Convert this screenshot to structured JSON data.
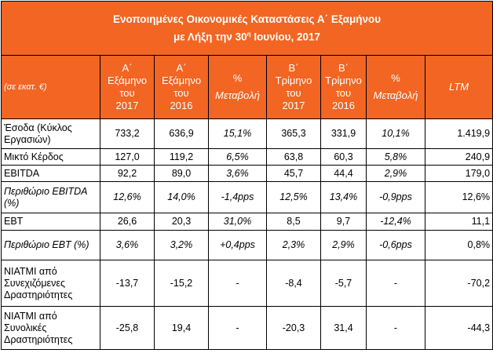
{
  "title": {
    "line1": "Ενοποιημένες Οικονομικές Καταστάσεις Α΄ Εξαμήνου",
    "line2_pre": "με Λήξη την 30",
    "line2_sup": "η",
    "line2_post": " Ιουνίου, 2017"
  },
  "header": {
    "units": "(σε εκατ. €)",
    "columns": [
      {
        "line1": "Α΄",
        "line2": "Εξάμηνο",
        "line3": "του",
        "line4": "2017"
      },
      {
        "line1": "Α΄",
        "line2": "Εξάμηνο",
        "line3": "του",
        "line4": "2016"
      },
      {
        "line1": "%",
        "line2": "Μεταβολή"
      },
      {
        "line1": "Β΄",
        "line2": "Τρίμηνο",
        "line3": "του",
        "line4": "2017"
      },
      {
        "line1": "Β΄",
        "line2": "Τρίμηνο",
        "line3": "του",
        "line4": "2016"
      },
      {
        "line1": "%",
        "line2": "Μεταβολή"
      },
      {
        "line1": "LTM"
      }
    ]
  },
  "rows": [
    {
      "label": "Έσοδα (Κύκλος Εργασιών)",
      "italic": false,
      "values": [
        "733,2",
        "636,9",
        "15,1%",
        "365,3",
        "331,9",
        "10,1%",
        "1.419,9"
      ]
    },
    {
      "label": "Μικτό Κέρδος",
      "italic": false,
      "values": [
        "127,0",
        "119,2",
        "6,5%",
        "63,8",
        "60,3",
        "5,8%",
        "240,9"
      ]
    },
    {
      "label": "EBITDA",
      "italic": false,
      "values": [
        "92,2",
        "89,0",
        "3,6%",
        "45,7",
        "44,4",
        "2,9%",
        "179,0"
      ]
    },
    {
      "label": "Περιθώριο EBITDA (%)",
      "italic": true,
      "values": [
        "12,6%",
        "14,0%",
        "-1,4pps",
        "12,5%",
        "13,4%",
        "-0,9pps",
        "12,6%"
      ]
    },
    {
      "label": "EBT",
      "italic": false,
      "values": [
        "26,6",
        "20,3",
        "31,0%",
        "8,5",
        "9,7",
        "-12,4%",
        "11,1"
      ]
    },
    {
      "label": "Περιθώριο EBT (%)",
      "italic": true,
      "values": [
        "3,6%",
        "3,2%",
        "+0,4pps",
        "2,3%",
        "2,9%",
        "-0,6pps",
        "0,8%"
      ]
    },
    {
      "label": "ΝΙΑΤΜΙ από Συνεχιζόμενες Δραστηριότητες",
      "italic": false,
      "values": [
        "-13,7",
        "-15,2",
        "-",
        "-8,4",
        "-5,7",
        "-",
        "-70,2"
      ]
    },
    {
      "label": "ΝΙΑΤΜΙ από Συνολικές Δραστηριότητες",
      "italic": false,
      "values": [
        "-25,8",
        "19,4",
        "-",
        "-20,3",
        "31,4",
        "-",
        "-44,3"
      ]
    }
  ],
  "colors": {
    "header_bg": "#f26522",
    "header_text": "#ffffff",
    "border": "#000000"
  }
}
